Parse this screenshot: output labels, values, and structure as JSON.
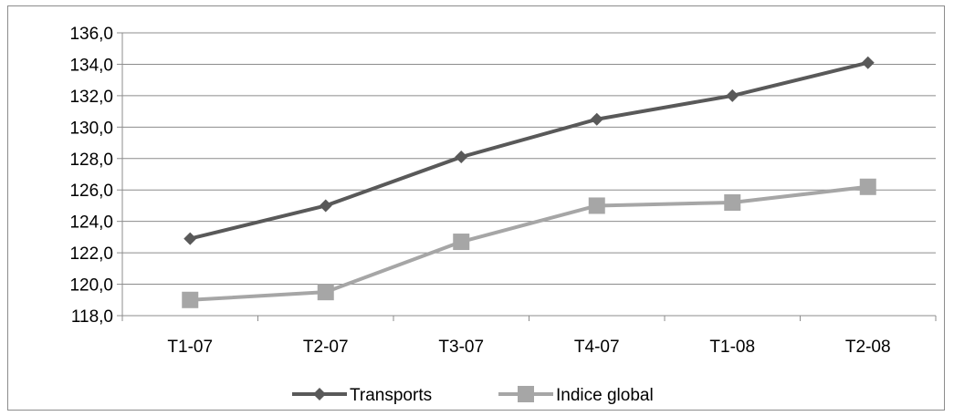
{
  "chart_data": {
    "type": "line",
    "title": "",
    "xlabel": "",
    "ylabel": "",
    "categories": [
      "T1-07",
      "T2-07",
      "T3-07",
      "T4-07",
      "T1-08",
      "T2-08"
    ],
    "series": [
      {
        "name": "Transports",
        "values": [
          122.9,
          125.0,
          128.1,
          130.5,
          132.0,
          134.1
        ],
        "color": "#595959",
        "marker": "diamond"
      },
      {
        "name": "Indice global",
        "values": [
          119.0,
          119.5,
          122.7,
          125.0,
          125.2,
          126.2
        ],
        "color": "#a6a6a6",
        "marker": "square"
      }
    ],
    "ylim": [
      118.0,
      136.0
    ],
    "yticks": [
      118.0,
      120.0,
      122.0,
      124.0,
      126.0,
      128.0,
      130.0,
      132.0,
      134.0,
      136.0
    ],
    "ytick_labels": [
      "118,0",
      "120,0",
      "122,0",
      "124,0",
      "126,0",
      "128,0",
      "130,0",
      "132,0",
      "134,0",
      "136,0"
    ],
    "grid": true,
    "legend_position": "bottom"
  }
}
